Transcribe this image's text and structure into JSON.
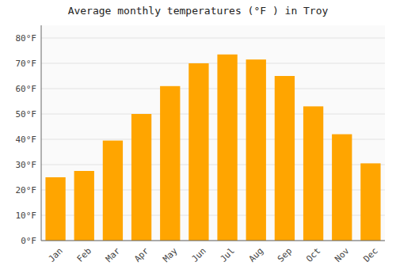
{
  "chart_data": {
    "type": "bar",
    "title": "Average monthly temperatures (°F ) in Troy",
    "categories": [
      "Jan",
      "Feb",
      "Mar",
      "Apr",
      "May",
      "Jun",
      "Jul",
      "Aug",
      "Sep",
      "Oct",
      "Nov",
      "Dec"
    ],
    "values": [
      25,
      27.5,
      39.5,
      50,
      61,
      70,
      73.5,
      71.5,
      65,
      53,
      42,
      30.5
    ],
    "color": "#FFA500",
    "ylim": [
      0,
      85
    ],
    "yticks": [
      {
        "value": 0,
        "label": "0°F"
      },
      {
        "value": 10,
        "label": "10°F"
      },
      {
        "value": 20,
        "label": "20°F"
      },
      {
        "value": 30,
        "label": "30°F"
      },
      {
        "value": 40,
        "label": "40°F"
      },
      {
        "value": 50,
        "label": "50°F"
      },
      {
        "value": 60,
        "label": "60°F"
      },
      {
        "value": 70,
        "label": "70°F"
      },
      {
        "value": 80,
        "label": "80°F"
      }
    ],
    "grid": true
  }
}
